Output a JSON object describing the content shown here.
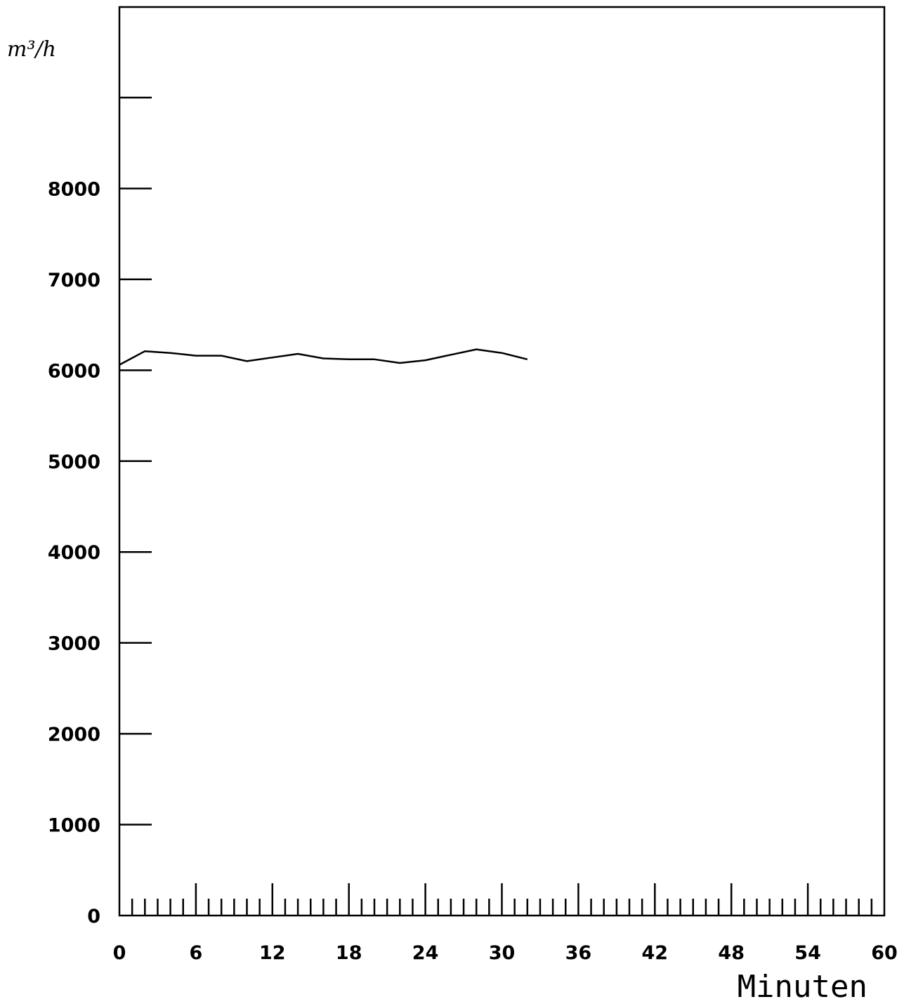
{
  "chart_data": {
    "type": "line",
    "title": "",
    "xlabel": "Minuten",
    "ylabel": "m³/h",
    "xlim": [
      0,
      60
    ],
    "ylim": [
      0,
      9000
    ],
    "x_major_ticks": [
      0,
      6,
      12,
      18,
      24,
      30,
      36,
      42,
      48,
      54,
      60
    ],
    "x_minor_step": 1,
    "y_ticks": [
      0,
      1000,
      2000,
      3000,
      4000,
      5000,
      6000,
      7000,
      8000,
      9000
    ],
    "y_tick_labels": [
      "0",
      "1000",
      "2000",
      "3000",
      "4000",
      "5000",
      "6000",
      "7000",
      "8000",
      ""
    ],
    "grid": false,
    "line_color": "#000000",
    "series": [
      {
        "x": [
          0,
          2,
          4,
          6,
          8,
          10,
          12,
          14,
          16,
          18,
          20,
          22,
          24,
          26,
          28,
          30,
          32
        ],
        "y": [
          6060,
          6210,
          6190,
          6160,
          6160,
          6100,
          6140,
          6180,
          6130,
          6120,
          6120,
          6080,
          6110,
          6170,
          6230,
          6190,
          6120
        ]
      }
    ]
  }
}
